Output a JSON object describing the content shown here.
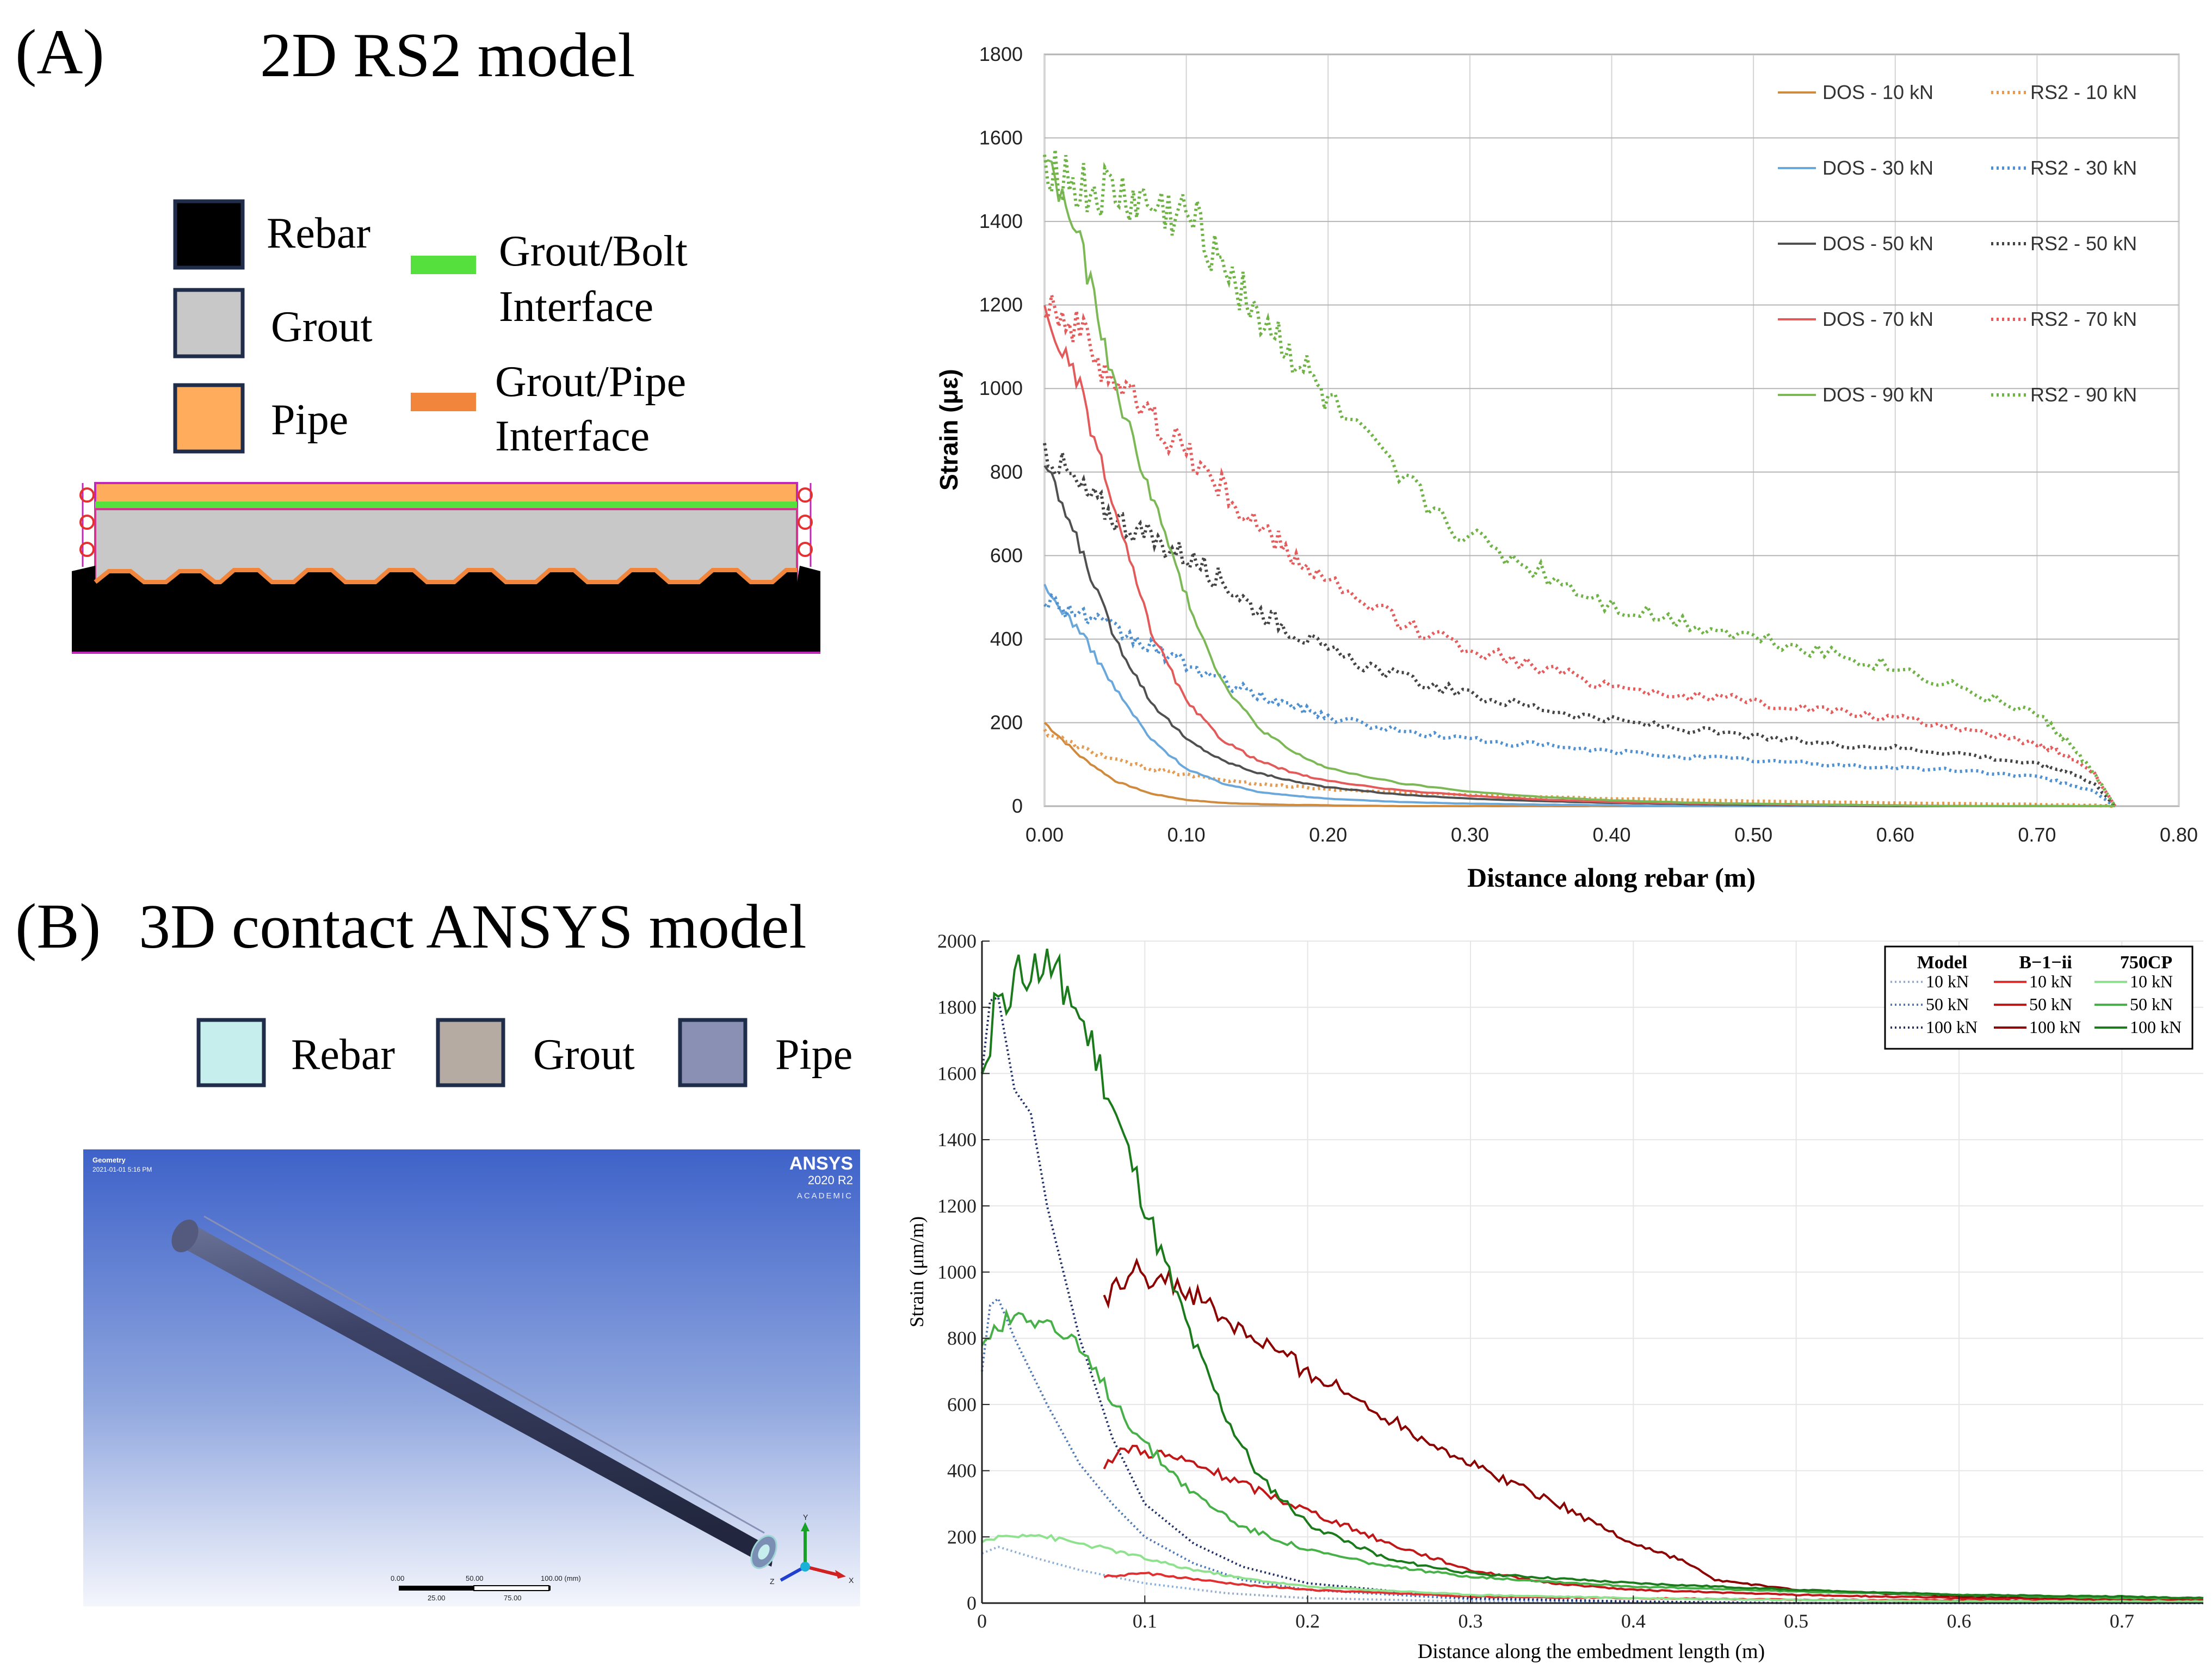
{
  "panel_a": {
    "label": "(A)",
    "title": "2D RS2 model",
    "legend": {
      "rebar": "Rebar",
      "grout": "Grout",
      "pipe": "Pipe",
      "grout_bolt_1": "Grout/Bolt",
      "grout_bolt_2": "Interface",
      "grout_pipe_1": "Grout/Pipe",
      "grout_pipe_2": "Interface"
    },
    "colors": {
      "rebar": "#000000",
      "grout": "#c8c8c8",
      "pipe": "#ffac5c",
      "grout_bolt": "#56e03e",
      "grout_pipe": "#f2853c",
      "border": "#1f2d4a"
    }
  },
  "panel_b": {
    "label": "(B)",
    "title": "3D contact ANSYS model",
    "legend": {
      "rebar": "Rebar",
      "grout": "Grout",
      "pipe": "Pipe"
    },
    "colors": {
      "rebar": "#c6eeec",
      "grout": "#b5aba3",
      "pipe": "#8a8fb4",
      "border": "#1f2d4a"
    },
    "viewport": {
      "caption1": "Geometry",
      "caption2": "2021-01-01 5:16 PM",
      "brand": "ANSYS",
      "version": "2020 R2",
      "edition": "ACADEMIC",
      "scale_top": [
        "0.00",
        "50.00",
        "100.00 (mm)"
      ],
      "scale_bottom": [
        "25.00",
        "75.00"
      ],
      "axes": {
        "x": "X",
        "y": "Y",
        "z": "Z"
      }
    }
  },
  "chart_data": [
    {
      "type": "line",
      "title": "",
      "xlabel": "Distance along rebar (m)",
      "ylabel": "Strain (με)",
      "xlim": [
        0,
        0.8
      ],
      "ylim": [
        0,
        1800
      ],
      "xticks": [
        "0.00",
        "0.10",
        "0.20",
        "0.30",
        "0.40",
        "0.50",
        "0.60",
        "0.70",
        "0.80"
      ],
      "yticks": [
        "0",
        "200",
        "400",
        "600",
        "800",
        "1000",
        "1200",
        "1400",
        "1600",
        "1800"
      ],
      "grid": true,
      "legend_position": "top-right",
      "x": [
        0,
        0.025,
        0.05,
        0.075,
        0.1,
        0.125,
        0.15,
        0.175,
        0.2,
        0.25,
        0.3,
        0.35,
        0.4,
        0.45,
        0.5,
        0.55,
        0.6,
        0.65,
        0.7,
        0.72,
        0.74,
        0.755
      ],
      "series": [
        {
          "name": "DOS - 10 kN",
          "color": "#d08a3e",
          "dash": false,
          "values": [
            200,
            120,
            60,
            30,
            15,
            8,
            5,
            3,
            2,
            0,
            0,
            0,
            0,
            0,
            0,
            0,
            0,
            0,
            0,
            0,
            0,
            0
          ]
        },
        {
          "name": "RS2 - 10 kN",
          "color": "#e49a50",
          "dash": true,
          "values": [
            180,
            140,
            110,
            90,
            75,
            63,
            54,
            47,
            41,
            33,
            27,
            22,
            18,
            15,
            12,
            10,
            8,
            6,
            4,
            3,
            2,
            0
          ]
        },
        {
          "name": "DOS - 30 kN",
          "color": "#6aa8dc",
          "dash": false,
          "values": [
            520,
            420,
            280,
            160,
            90,
            55,
            35,
            25,
            18,
            10,
            6,
            4,
            2,
            0,
            0,
            0,
            0,
            0,
            0,
            0,
            0,
            0
          ]
        },
        {
          "name": "RS2 - 30 kN",
          "color": "#4f90d0",
          "dash": true,
          "values": [
            500,
            460,
            420,
            380,
            340,
            300,
            265,
            240,
            215,
            180,
            160,
            145,
            130,
            120,
            110,
            100,
            92,
            85,
            70,
            55,
            35,
            0
          ]
        },
        {
          "name": "DOS - 50 kN",
          "color": "#505050",
          "dash": false,
          "values": [
            820,
            620,
            400,
            250,
            160,
            110,
            80,
            60,
            45,
            28,
            18,
            12,
            8,
            5,
            3,
            2,
            0,
            0,
            0,
            0,
            0,
            0
          ]
        },
        {
          "name": "RS2 - 50 kN",
          "color": "#444444",
          "dash": true,
          "values": [
            860,
            760,
            690,
            640,
            600,
            540,
            470,
            420,
            370,
            310,
            265,
            235,
            205,
            185,
            165,
            150,
            140,
            125,
            100,
            85,
            55,
            0
          ]
        },
        {
          "name": "DOS - 70 kN",
          "color": "#e25a5a",
          "dash": false,
          "values": [
            1180,
            1000,
            700,
            420,
            250,
            160,
            110,
            80,
            60,
            38,
            25,
            16,
            10,
            7,
            5,
            3,
            2,
            0,
            0,
            0,
            0,
            0
          ]
        },
        {
          "name": "RS2 - 70 kN",
          "color": "#e45c5c",
          "dash": true,
          "values": [
            1230,
            1130,
            1020,
            930,
            850,
            760,
            670,
            600,
            530,
            440,
            380,
            330,
            290,
            265,
            250,
            230,
            210,
            185,
            150,
            125,
            80,
            0
          ]
        },
        {
          "name": "DOS - 90 kN",
          "color": "#7db857",
          "dash": false,
          "values": [
            1560,
            1350,
            1000,
            750,
            500,
            300,
            190,
            130,
            90,
            55,
            35,
            22,
            14,
            9,
            6,
            4,
            2,
            0,
            0,
            0,
            0,
            0
          ]
        },
        {
          "name": "RS2 - 90 kN",
          "color": "#6fb246",
          "dash": true,
          "values": [
            1560,
            1470,
            1460,
            1430,
            1410,
            1320,
            1180,
            1080,
            960,
            780,
            640,
            560,
            480,
            440,
            405,
            370,
            330,
            280,
            220,
            160,
            80,
            0
          ]
        }
      ]
    },
    {
      "type": "line",
      "title": "",
      "xlabel": "Distance along the embedment length (m)",
      "ylabel": "Strain (μm/m)",
      "xlim": [
        0,
        0.75
      ],
      "ylim": [
        0,
        2000
      ],
      "xticks": [
        "0",
        "0.1",
        "0.2",
        "0.3",
        "0.4",
        "0.5",
        "0.6",
        "0.7"
      ],
      "yticks": [
        "0",
        "200",
        "400",
        "600",
        "800",
        "1000",
        "1200",
        "1400",
        "1600",
        "1800",
        "2000"
      ],
      "grid": true,
      "legend_position": "top-right",
      "legend_headers": [
        "Model",
        "B−1−ii",
        "750CP"
      ],
      "series": [
        {
          "name": "Model 10 kN",
          "group": "Model",
          "label": "10 kN",
          "color": "#8fb0d6",
          "dash": true,
          "x": [
            0,
            0.01,
            0.03,
            0.06,
            0.1,
            0.15,
            0.2,
            0.3,
            0.4,
            0.5,
            0.6,
            0.7,
            0.75
          ],
          "values": [
            150,
            170,
            140,
            100,
            60,
            30,
            15,
            5,
            2,
            0,
            0,
            0,
            0
          ]
        },
        {
          "name": "Model 50 kN",
          "group": "Model",
          "label": "50 kN",
          "color": "#4f78b5",
          "dash": true,
          "x": [
            0,
            0.005,
            0.01,
            0.02,
            0.04,
            0.06,
            0.08,
            0.1,
            0.13,
            0.16,
            0.2,
            0.3,
            0.4,
            0.5,
            0.75
          ],
          "values": [
            700,
            900,
            920,
            800,
            600,
            420,
            300,
            200,
            120,
            70,
            40,
            12,
            4,
            0,
            0
          ]
        },
        {
          "name": "Model 100 kN",
          "group": "Model",
          "label": "100 kN",
          "color": "#1d2f66",
          "dash": true,
          "x": [
            0,
            0.005,
            0.01,
            0.02,
            0.03,
            0.04,
            0.05,
            0.06,
            0.08,
            0.1,
            0.13,
            0.16,
            0.2,
            0.3,
            0.4,
            0.5,
            0.75
          ],
          "values": [
            1600,
            1820,
            1830,
            1550,
            1480,
            1200,
            1000,
            800,
            500,
            300,
            180,
            110,
            60,
            15,
            5,
            0,
            0
          ]
        },
        {
          "name": "B-1-ii 10 kN",
          "group": "B−1−ii",
          "label": "10 kN",
          "color": "#e03030",
          "dash": false,
          "x": [
            0.075,
            0.1,
            0.15,
            0.2,
            0.25,
            0.3,
            0.4,
            0.5,
            0.6,
            0.7,
            0.75
          ],
          "values": [
            80,
            90,
            60,
            40,
            30,
            20,
            15,
            10,
            8,
            5,
            5
          ]
        },
        {
          "name": "B-1-ii 50 kN",
          "group": "B−1−ii",
          "label": "50 kN",
          "color": "#c01818",
          "dash": false,
          "x": [
            0.075,
            0.09,
            0.11,
            0.13,
            0.16,
            0.2,
            0.25,
            0.3,
            0.35,
            0.4,
            0.5,
            0.6,
            0.7,
            0.75
          ],
          "values": [
            420,
            470,
            450,
            420,
            360,
            280,
            180,
            100,
            60,
            40,
            25,
            15,
            10,
            10
          ]
        },
        {
          "name": "B-1-ii 100 kN",
          "group": "B−1−ii",
          "label": "100 kN",
          "color": "#8b0000",
          "dash": false,
          "x": [
            0.075,
            0.09,
            0.1,
            0.11,
            0.13,
            0.15,
            0.2,
            0.25,
            0.3,
            0.35,
            0.4,
            0.43,
            0.45,
            0.5,
            0.6,
            0.7,
            0.75
          ],
          "values": [
            900,
            1000,
            990,
            980,
            930,
            850,
            700,
            560,
            420,
            310,
            180,
            130,
            70,
            40,
            20,
            15,
            15
          ]
        },
        {
          "name": "750CP 10 kN",
          "group": "750CP",
          "label": "10 kN",
          "color": "#8ee28e",
          "dash": false,
          "x": [
            0,
            0.01,
            0.03,
            0.05,
            0.08,
            0.12,
            0.16,
            0.2,
            0.3,
            0.4,
            0.5,
            0.6,
            0.7,
            0.75
          ],
          "values": [
            180,
            200,
            210,
            190,
            160,
            110,
            75,
            50,
            25,
            15,
            10,
            5,
            5,
            5
          ]
        },
        {
          "name": "750CP 50 kN",
          "group": "750CP",
          "label": "50 kN",
          "color": "#48b048",
          "dash": false,
          "x": [
            0,
            0.01,
            0.025,
            0.04,
            0.06,
            0.08,
            0.1,
            0.13,
            0.16,
            0.2,
            0.25,
            0.3,
            0.4,
            0.5,
            0.6,
            0.7,
            0.75
          ],
          "values": [
            770,
            850,
            880,
            850,
            760,
            620,
            480,
            330,
            230,
            160,
            110,
            80,
            50,
            35,
            25,
            15,
            15
          ]
        },
        {
          "name": "750CP 100 kN",
          "group": "750CP",
          "label": "100 kN",
          "color": "#1b7a1b",
          "dash": false,
          "x": [
            0,
            0.01,
            0.02,
            0.03,
            0.04,
            0.05,
            0.07,
            0.09,
            0.11,
            0.13,
            0.15,
            0.17,
            0.2,
            0.25,
            0.3,
            0.4,
            0.5,
            0.6,
            0.7,
            0.75
          ],
          "values": [
            1600,
            1830,
            1880,
            1910,
            1920,
            1880,
            1650,
            1350,
            1050,
            780,
            560,
            380,
            240,
            130,
            90,
            60,
            40,
            25,
            20,
            15
          ]
        }
      ]
    }
  ]
}
